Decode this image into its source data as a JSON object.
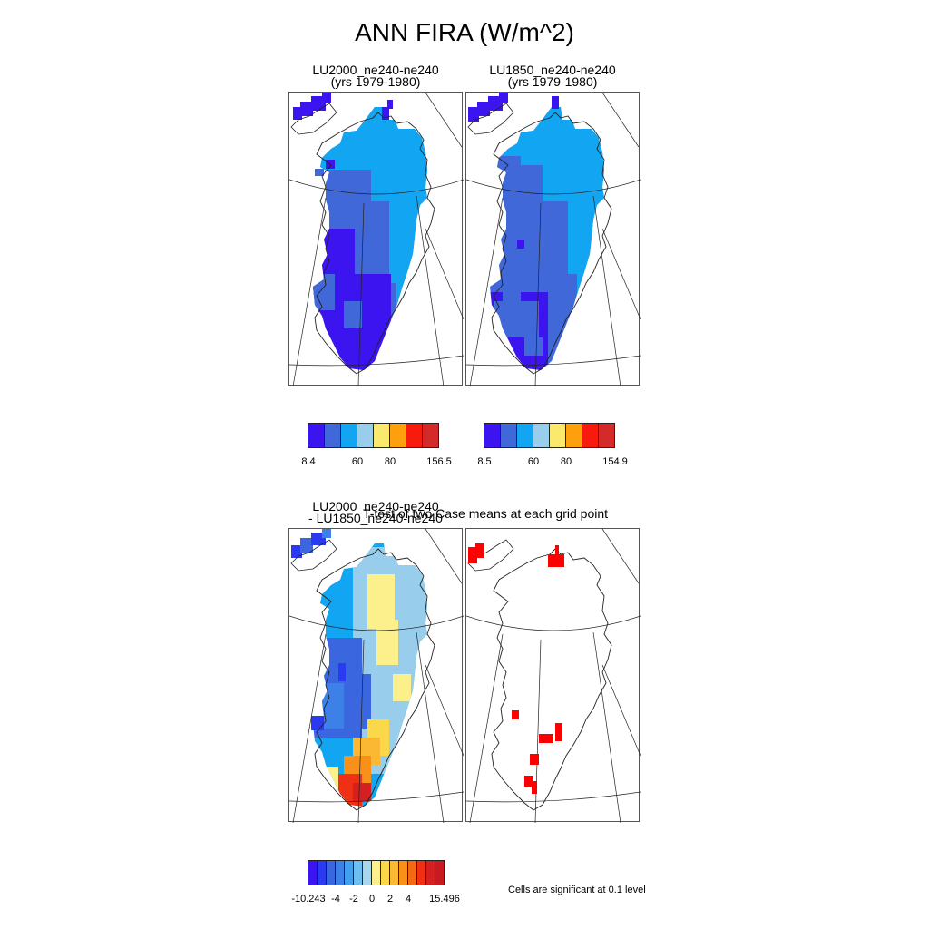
{
  "title": "ANN FIRA (W/m^2)",
  "panels": {
    "top_left": {
      "line1": "LU2000_ne240-ne240",
      "line2": "(yrs 1979-1980)"
    },
    "top_right": {
      "line1": "LU1850_ne240-ne240",
      "line2": "(yrs 1979-1980)"
    },
    "bottom_left": {
      "line1": "LU2000_ne240-ne240",
      "line2": "- LU1850_ne240-ne240"
    },
    "bottom_right": {
      "line1": "T-test of two Case means at each grid point"
    }
  },
  "colorbars": {
    "top_left": {
      "colors": [
        "#3c14f0",
        "#4068d8",
        "#12a6f2",
        "#98cdeb",
        "#fbe96e",
        "#fca00e",
        "#f81a0c",
        "#d42a2a"
      ],
      "ticks": [
        "8.4",
        "60",
        "80",
        "156.5"
      ]
    },
    "top_right": {
      "colors": [
        "#3c14f0",
        "#4068d8",
        "#12a6f2",
        "#98cdeb",
        "#fbe96e",
        "#fca00e",
        "#f81a0c",
        "#d42a2a"
      ],
      "ticks": [
        "8.5",
        "60",
        "80",
        "154.9"
      ]
    },
    "bottom": {
      "colors": [
        "#3c14f0",
        "#2a3af0",
        "#3a66e0",
        "#3c80e8",
        "#42a0ee",
        "#6ebef0",
        "#a8d6ec",
        "#fbf08c",
        "#fbd84a",
        "#fbb832",
        "#f8901a",
        "#f46a14",
        "#f03014",
        "#d42020",
        "#c81a20"
      ],
      "ticks": [
        "-10.243",
        "-4",
        "-2",
        "0",
        "2",
        "4",
        "15.496"
      ]
    }
  },
  "significance_note": "Cells are significant at 0.1 level",
  "map_colors": {
    "dark": "#3c14f0",
    "mid": "#4068d8",
    "light": "#12a6f2",
    "pale": "#98cdeb",
    "yellow": "#fbe96e",
    "orange": "#fca00e",
    "red": "#f81a0c",
    "darkred": "#d42a2a",
    "signif": "#ff0000"
  }
}
